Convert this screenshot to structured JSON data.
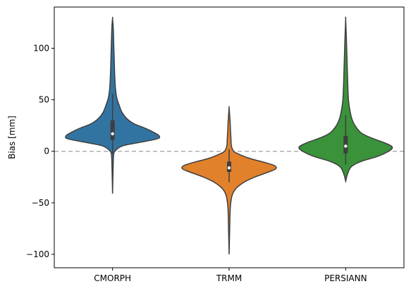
{
  "chart_data": {
    "type": "violin",
    "title": "",
    "xlabel": "",
    "ylabel": "Bias [mm]",
    "ylim": [
      -113,
      140
    ],
    "yticks": [
      -100,
      -50,
      0,
      50,
      100
    ],
    "ytick_labels": [
      "−100",
      "−50",
      "0",
      "50",
      "100"
    ],
    "reference_line": {
      "y": 0,
      "style": "dashed",
      "color": "#b0b0b0"
    },
    "grid": false,
    "legend": "none",
    "categories": [
      "CMORPH",
      "TRMM",
      "PERSIANN"
    ],
    "colors": [
      "#3274a1",
      "#e1812c",
      "#3a923a"
    ],
    "series": [
      {
        "name": "CMORPH",
        "min": -41,
        "q1": 11,
        "median": 17,
        "q3": 30,
        "max": 129,
        "whisker_low": -3,
        "whisker_high": 56,
        "density_profile": [
          [
            -41,
            0.0
          ],
          [
            -20,
            0.01
          ],
          [
            -5,
            0.02
          ],
          [
            0,
            0.05
          ],
          [
            5,
            0.2
          ],
          [
            8,
            0.5
          ],
          [
            12,
            0.95
          ],
          [
            15,
            1.0
          ],
          [
            18,
            0.9
          ],
          [
            22,
            0.72
          ],
          [
            27,
            0.45
          ],
          [
            32,
            0.3
          ],
          [
            38,
            0.2
          ],
          [
            45,
            0.14
          ],
          [
            52,
            0.09
          ],
          [
            62,
            0.06
          ],
          [
            75,
            0.045
          ],
          [
            90,
            0.035
          ],
          [
            105,
            0.025
          ],
          [
            120,
            0.015
          ],
          [
            129,
            0.0
          ]
        ]
      },
      {
        "name": "TRMM",
        "min": -100,
        "q1": -20,
        "median": -16,
        "q3": -10,
        "max": 42,
        "whisker_low": -30,
        "whisker_high": 2,
        "density_profile": [
          [
            -100,
            0.0
          ],
          [
            -80,
            0.01
          ],
          [
            -60,
            0.02
          ],
          [
            -50,
            0.035
          ],
          [
            -42,
            0.07
          ],
          [
            -36,
            0.15
          ],
          [
            -30,
            0.32
          ],
          [
            -25,
            0.55
          ],
          [
            -20,
            0.85
          ],
          [
            -17,
            1.0
          ],
          [
            -14,
            0.98
          ],
          [
            -11,
            0.78
          ],
          [
            -7,
            0.45
          ],
          [
            -3,
            0.22
          ],
          [
            0,
            0.1
          ],
          [
            5,
            0.05
          ],
          [
            12,
            0.04
          ],
          [
            20,
            0.03
          ],
          [
            30,
            0.02
          ],
          [
            42,
            0.0
          ]
        ]
      },
      {
        "name": "PERSIANN",
        "min": -29,
        "q1": -2,
        "median": 5,
        "q3": 15,
        "max": 128,
        "whisker_low": -13,
        "whisker_high": 35,
        "density_profile": [
          [
            -29,
            0.0
          ],
          [
            -22,
            0.04
          ],
          [
            -15,
            0.12
          ],
          [
            -10,
            0.32
          ],
          [
            -5,
            0.68
          ],
          [
            0,
            0.92
          ],
          [
            4,
            1.0
          ],
          [
            8,
            0.85
          ],
          [
            13,
            0.55
          ],
          [
            18,
            0.33
          ],
          [
            25,
            0.2
          ],
          [
            32,
            0.13
          ],
          [
            40,
            0.09
          ],
          [
            50,
            0.06
          ],
          [
            65,
            0.045
          ],
          [
            80,
            0.035
          ],
          [
            95,
            0.025
          ],
          [
            110,
            0.015
          ],
          [
            128,
            0.0
          ]
        ]
      }
    ]
  }
}
